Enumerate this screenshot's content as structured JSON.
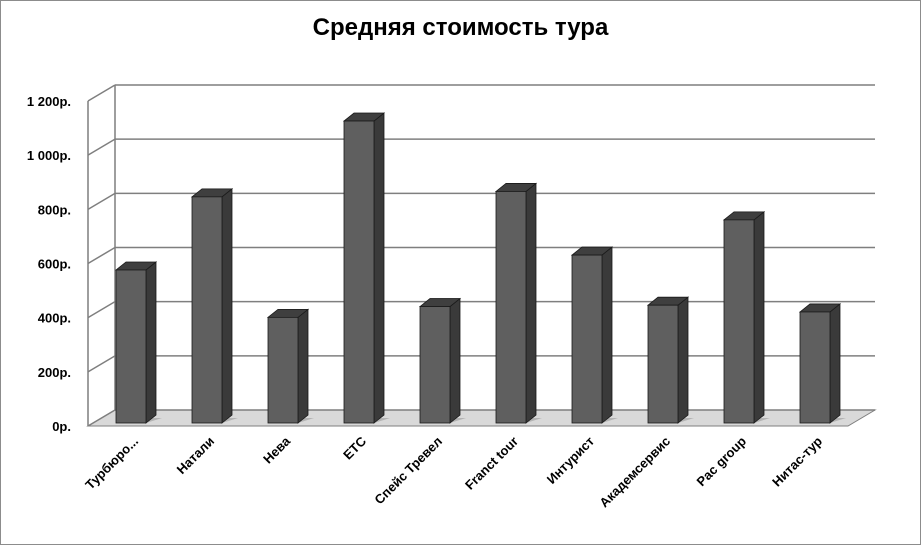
{
  "chart_data": {
    "type": "bar",
    "title": "Средняя стоимость тура",
    "categories": [
      "Турбюро...",
      "Натали",
      "Нева",
      "ETC",
      "Спейс Тревел",
      "Franct tour",
      "Интурист",
      "Академсервис",
      "Pac group",
      "Нитас-тур"
    ],
    "values": [
      565,
      835,
      390,
      1115,
      430,
      855,
      620,
      435,
      750,
      410
    ],
    "ylim": [
      0,
      1200
    ],
    "yticks": [
      0,
      200,
      400,
      600,
      800,
      1000,
      1200
    ],
    "ytick_labels": [
      "0р.",
      "200р.",
      "400р.",
      "600р.",
      "800р.",
      "1 000р.",
      "1 200р."
    ],
    "xlabel": "",
    "ylabel": "",
    "grid": true,
    "legend": "none",
    "colors": {
      "bar_front": "#5f5f5f",
      "bar_top": "#3f3f3f",
      "bar_side": "#3a3a3a",
      "grid": "#7f7f7f",
      "floor": "#d9d9d9"
    }
  }
}
